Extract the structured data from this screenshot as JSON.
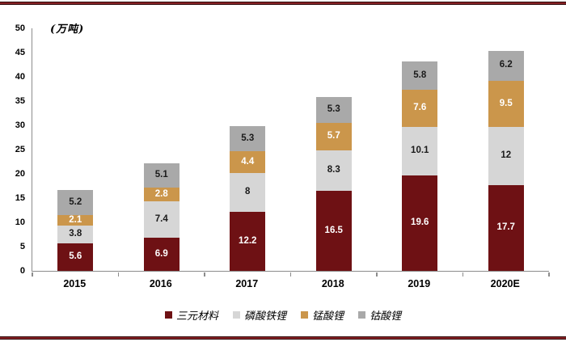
{
  "decorations": {
    "accent_rule_color": "#872225",
    "accent_rule_edge_color": "#2e090a"
  },
  "chart_data": {
    "type": "bar",
    "stacked": true,
    "title": "",
    "unit_label": "(万吨)",
    "categories": [
      "2015",
      "2016",
      "2017",
      "2018",
      "2019",
      "2020E"
    ],
    "series": [
      {
        "key": "ternary",
        "name": "三元材料",
        "color": "#6E1114",
        "label_color": "#FFFFFF",
        "values": [
          5.6,
          6.9,
          12.2,
          16.5,
          19.6,
          17.7
        ]
      },
      {
        "key": "lfp",
        "name": "磷酸铁锂",
        "color": "#D6D6D6",
        "label_color": "#1A1A1A",
        "values": [
          3.8,
          7.4,
          8,
          8.3,
          10.1,
          12
        ]
      },
      {
        "key": "lmo",
        "name": "锰酸锂",
        "color": "#CB964B",
        "label_color": "#FFFFFF",
        "values": [
          2.1,
          2.8,
          4.4,
          5.7,
          7.6,
          9.5
        ]
      },
      {
        "key": "lco",
        "name": "钴酸锂",
        "color": "#A9A9A9",
        "label_color": "#1A1A1A",
        "values": [
          5.2,
          5.1,
          5.3,
          5.3,
          5.8,
          6.2
        ]
      }
    ],
    "ylim": [
      0,
      50
    ],
    "ytick_step": 5,
    "yticks": [
      0,
      5,
      10,
      15,
      20,
      25,
      30,
      35,
      40,
      45,
      50
    ],
    "grid": false,
    "legend_position": "bottom",
    "axis_color": "#8C8C8C"
  }
}
